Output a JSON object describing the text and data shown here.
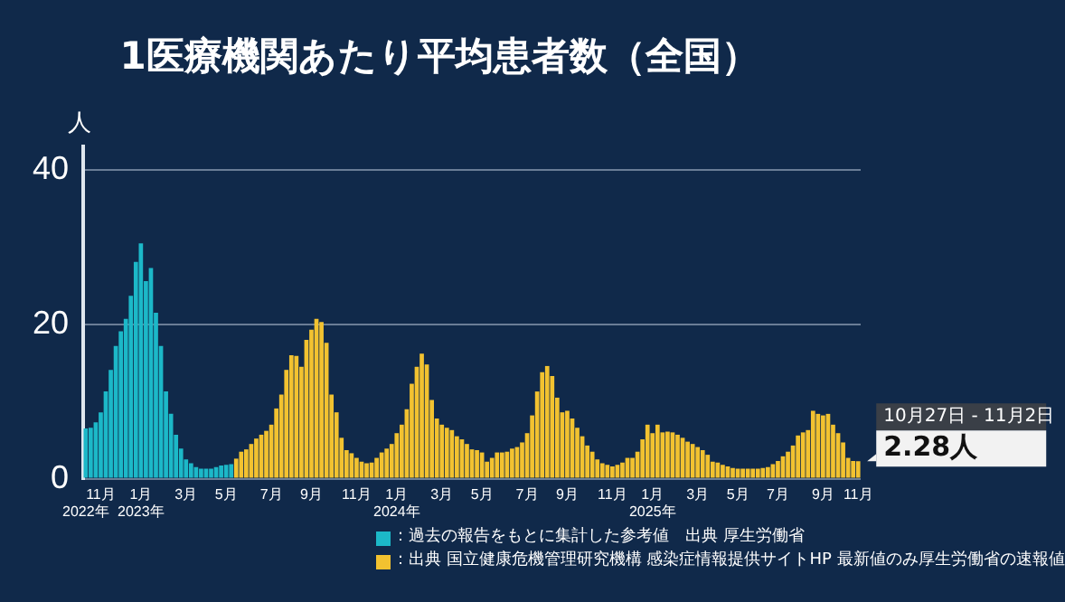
{
  "chart_data": {
    "type": "bar",
    "title": "1医療機関あたり平均患者数（全国）",
    "ylabel": "人",
    "categories": [
      "\n2022年",
      null,
      null,
      "11月",
      null,
      null,
      null,
      null,
      null,
      null,
      null,
      "1月\n2023年",
      null,
      null,
      null,
      null,
      null,
      null,
      null,
      null,
      "3月",
      null,
      null,
      null,
      null,
      null,
      null,
      null,
      "5月",
      null,
      null,
      null,
      null,
      null,
      null,
      null,
      null,
      "7月",
      null,
      null,
      null,
      null,
      null,
      null,
      null,
      "9月",
      null,
      null,
      null,
      null,
      null,
      null,
      null,
      null,
      "11月",
      null,
      null,
      null,
      null,
      null,
      null,
      null,
      "1月\n2024年",
      null,
      null,
      null,
      null,
      null,
      null,
      null,
      null,
      "3月",
      null,
      null,
      null,
      null,
      null,
      null,
      null,
      "5月",
      null,
      null,
      null,
      null,
      null,
      null,
      null,
      null,
      "7月",
      null,
      null,
      null,
      null,
      null,
      null,
      null,
      "9月",
      null,
      null,
      null,
      null,
      null,
      null,
      null,
      null,
      "11月",
      null,
      null,
      null,
      null,
      null,
      null,
      null,
      "1月\n2025年",
      null,
      null,
      null,
      null,
      null,
      null,
      null,
      null,
      "3月",
      null,
      null,
      null,
      null,
      null,
      null,
      null,
      "5月",
      null,
      null,
      null,
      null,
      null,
      null,
      null,
      "7月",
      null,
      null,
      null,
      null,
      null,
      null,
      null,
      null,
      "9月",
      null,
      null,
      null,
      null,
      null,
      null,
      "11月"
    ],
    "series": [
      {
        "name": "：過去の報告をもとに集計した参考値　出典 厚生労働省",
        "color": "#1cb8c8",
        "values": [
          6.5,
          6.6,
          7.3,
          8.6,
          11.3,
          14.1,
          17.2,
          19.1,
          20.7,
          23.7,
          28.1,
          30.5,
          25.6,
          27.3,
          21.5,
          17.2,
          11.3,
          8.4,
          5.7,
          3.9,
          2.5,
          2.0,
          1.5,
          1.3,
          1.3,
          1.3,
          1.5,
          1.7,
          1.8,
          1.9,
          null,
          null,
          null,
          null,
          null,
          null,
          null,
          null,
          null,
          null,
          null,
          null,
          null,
          null,
          null,
          null,
          null,
          null,
          null,
          null,
          null,
          null,
          null,
          null,
          null,
          null,
          null,
          null,
          null,
          null,
          null,
          null,
          null,
          null,
          null,
          null,
          null,
          null,
          null,
          null,
          null,
          null,
          null,
          null,
          null,
          null,
          null,
          null,
          null,
          null,
          null,
          null,
          null,
          null,
          null,
          null,
          null,
          null,
          null,
          null,
          null,
          null,
          null,
          null,
          null,
          null,
          null,
          null,
          null,
          null,
          null,
          null,
          null,
          null,
          null,
          null,
          null,
          null,
          null,
          null,
          null,
          null,
          null,
          null,
          null,
          null,
          null,
          null,
          null,
          null,
          null,
          null,
          null,
          null,
          null,
          null,
          null,
          null,
          null,
          null,
          null,
          null,
          null,
          null,
          null,
          null,
          null,
          null,
          null,
          null,
          null,
          null,
          null,
          null,
          null,
          null,
          null,
          null,
          null,
          null,
          null,
          null,
          null,
          null,
          null
        ]
      },
      {
        "name": "：出典 国立健康危機管理研究機構 感染症情報提供サイトHP 最新値のみ厚生労働省の速報値",
        "color": "#f2c230",
        "values": [
          null,
          null,
          null,
          null,
          null,
          null,
          null,
          null,
          null,
          null,
          null,
          null,
          null,
          null,
          null,
          null,
          null,
          null,
          null,
          null,
          null,
          null,
          null,
          null,
          null,
          null,
          null,
          null,
          null,
          null,
          2.6,
          3.5,
          3.8,
          4.5,
          5.2,
          5.7,
          6.2,
          7.0,
          9.1,
          10.9,
          14.1,
          16.0,
          15.9,
          14.5,
          18.0,
          19.3,
          20.7,
          20.3,
          17.6,
          10.9,
          8.6,
          5.3,
          3.7,
          3.3,
          2.7,
          2.2,
          2.0,
          2.1,
          2.7,
          3.4,
          3.9,
          4.5,
          5.9,
          7.0,
          9.0,
          12.3,
          14.5,
          16.2,
          14.8,
          10.2,
          7.8,
          7.0,
          6.6,
          6.3,
          5.5,
          5.1,
          4.5,
          3.8,
          3.7,
          3.4,
          2.2,
          2.7,
          3.4,
          3.4,
          3.5,
          3.9,
          4.1,
          4.7,
          5.9,
          8.2,
          11.3,
          13.8,
          14.6,
          13.3,
          10.5,
          8.6,
          8.8,
          7.8,
          6.6,
          5.5,
          4.3,
          3.5,
          2.5,
          2.0,
          1.8,
          1.6,
          1.8,
          2.1,
          2.7,
          2.7,
          3.5,
          5.1,
          7.0,
          5.9,
          7.0,
          6.0,
          6.1,
          6.0,
          5.7,
          5.3,
          4.8,
          4.5,
          4.1,
          3.7,
          3.1,
          2.2,
          2.1,
          1.8,
          1.6,
          1.4,
          1.3,
          1.3,
          1.3,
          1.3,
          1.3,
          1.4,
          1.5,
          1.9,
          2.3,
          2.9,
          3.5,
          4.3,
          5.6,
          6.0,
          6.3,
          8.8,
          8.4,
          8.2,
          8.4,
          7.0,
          5.9,
          4.7,
          2.7,
          2.3,
          2.28
        ]
      }
    ],
    "ylim": [
      0,
      43
    ],
    "yticks": [
      0,
      20,
      40
    ],
    "grid": "y",
    "legend": "bottom",
    "annotations": [
      "10月27日 - 11月2日",
      "2.28人"
    ]
  }
}
